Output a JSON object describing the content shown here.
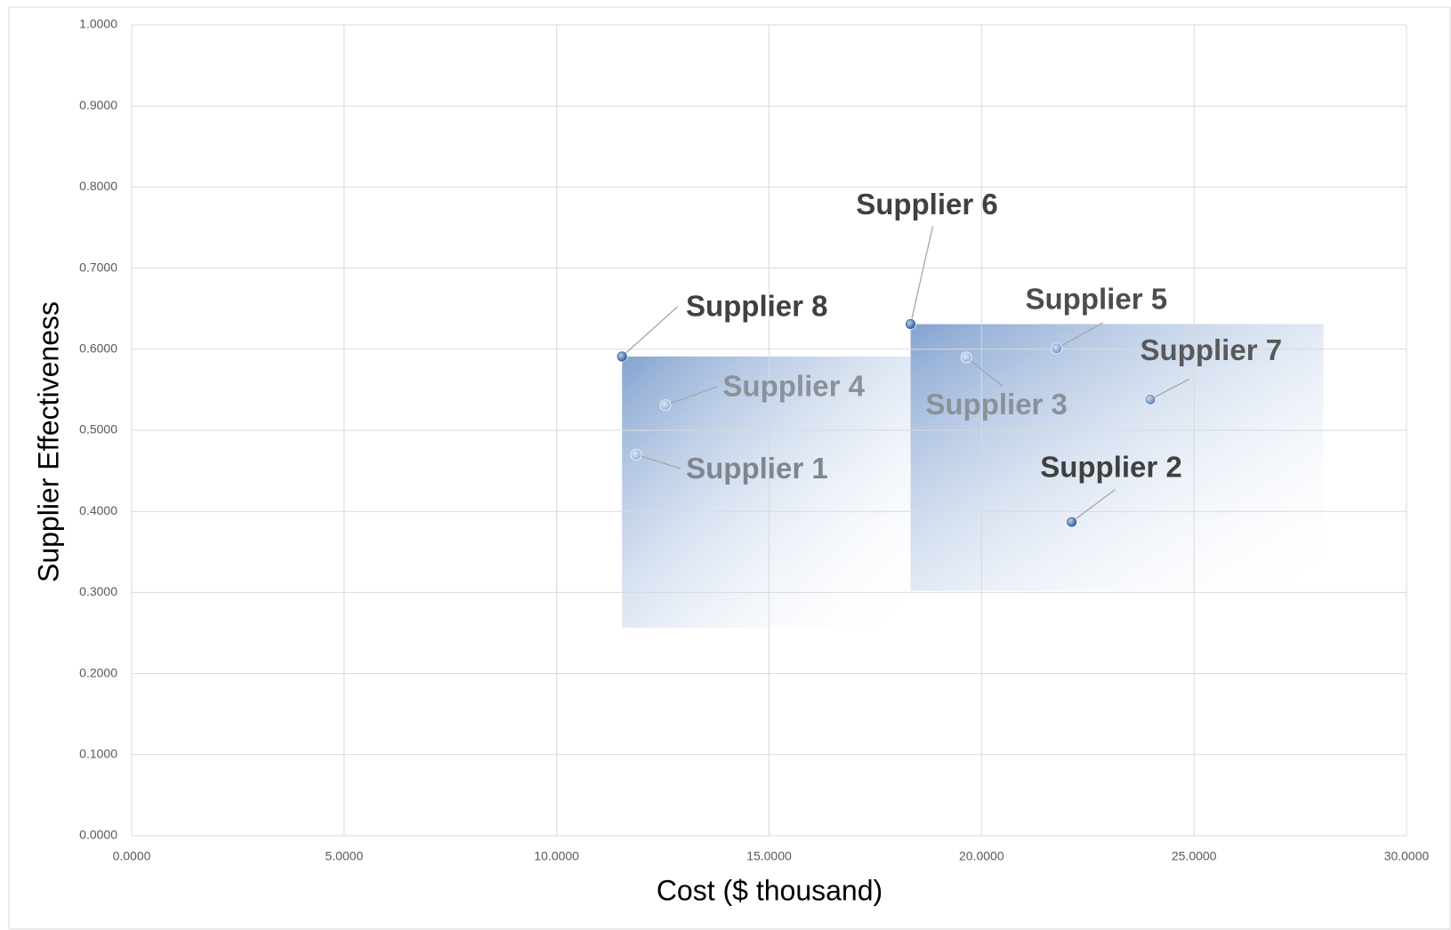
{
  "chart_data": {
    "type": "scatter",
    "x_label": "Cost ($ thousand)",
    "y_label": "Supplier Effectiveness",
    "labels": [
      "Supplier 1",
      "Supplier 2",
      "Supplier 3",
      "Supplier 4",
      "Supplier 5",
      "Supplier 6",
      "Supplier 7",
      "Supplier 8"
    ],
    "x": [
      11.87,
      22.12,
      19.64,
      12.56,
      21.77,
      18.33,
      23.97,
      11.54
    ],
    "values": [
      0.47,
      0.387,
      0.59,
      0.531,
      0.601,
      0.631,
      0.538,
      0.591
    ],
    "point_colors": [
      "#9bb5d9",
      "#2f5fa0",
      "#9bb5d9",
      "#9bb5d9",
      "#7a9ccc",
      "#2f5fa0",
      "#5f86c0",
      "#2f5fa0"
    ],
    "label_colors": [
      "#7f868e",
      "#404040",
      "#8a9199",
      "#8a9199",
      "#4d4d4d",
      "#404040",
      "#595959",
      "#404040"
    ],
    "xlim": [
      0,
      30
    ],
    "ylim": [
      0,
      1
    ],
    "xticks": [
      {
        "value": 0,
        "label": "0.0000"
      },
      {
        "value": 5,
        "label": "5.0000"
      },
      {
        "value": 10,
        "label": "10.0000"
      },
      {
        "value": 15,
        "label": "15.0000"
      },
      {
        "value": 20,
        "label": "20.0000"
      },
      {
        "value": 25,
        "label": "25.0000"
      },
      {
        "value": 30,
        "label": "30.0000"
      }
    ],
    "yticks": [
      {
        "value": 0,
        "label": "0.0000"
      },
      {
        "value": 0.1,
        "label": "0.1000"
      },
      {
        "value": 0.2,
        "label": "0.2000"
      },
      {
        "value": 0.3,
        "label": "0.3000"
      },
      {
        "value": 0.4,
        "label": "0.4000"
      },
      {
        "value": 0.5,
        "label": "0.5000"
      },
      {
        "value": 0.6,
        "label": "0.6000"
      },
      {
        "value": 0.7,
        "label": "0.7000"
      },
      {
        "value": 0.8,
        "label": "0.8000"
      },
      {
        "value": 0.9,
        "label": "0.9000"
      },
      {
        "value": 1,
        "label": "1.0000"
      }
    ],
    "grid": true
  }
}
